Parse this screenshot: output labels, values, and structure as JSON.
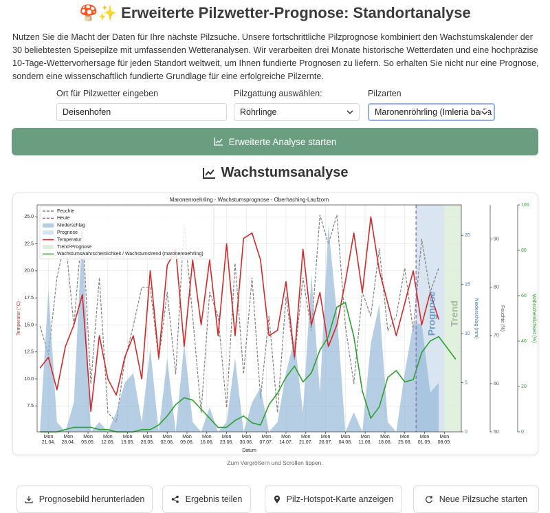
{
  "header": {
    "title": "🍄✨ Erweiterte Pilzwetter-Prognose: Standortanalyse",
    "intro": "Nutzen Sie die Macht der Daten für Ihre nächste Pilzsuche. Unsere fortschrittliche Pilzprognose kombiniert den Wachstumskalender der 30 beliebtesten Speisepilze mit umfassenden Wetteranalysen. Wir verarbeiten drei Monate historische Wetterdaten und eine hochpräzise 10-Tage-Wettervorhersage für jeden Standort weltweit, um Ihnen fundierte Prognosen zu liefern. So erhalten Sie nicht nur eine Prognose, sondern eine wissenschaftlich fundierte Grundlage für eine erfolgreiche Pilzernte."
  },
  "form": {
    "location": {
      "label": "Ort für Pilzwetter eingeben",
      "value": "Deisenhofen"
    },
    "genus": {
      "label": "Pilzgattung auswählen:",
      "value": "Röhrlinge"
    },
    "species": {
      "label": "Pilzarten",
      "value": "Maronenröhrling (Imleria badia"
    },
    "submit": "Erweiterte Analyse starten"
  },
  "section_title": "Wachstumsanalyse",
  "chart_data": {
    "type": "line",
    "title": "Maronenroehrling - Wachstumsprognose - Oberhaching-Laufzorn",
    "xlabel": "Datum",
    "ylabel": "Temperatur (°C)",
    "y2label": "Niederschlag (mm)",
    "y3label": "Feuchte (%)",
    "y4label": "Wahrscheinlichkeit (%)",
    "x": [
      "18.04.",
      "21.04.",
      "24.04.",
      "27.04.",
      "30.04.",
      "03.05.",
      "06.05.",
      "09.05.",
      "12.05.",
      "15.05.",
      "18.05.",
      "21.05.",
      "24.05.",
      "27.05.",
      "30.05.",
      "02.06.",
      "05.06.",
      "08.06.",
      "11.06.",
      "14.06.",
      "17.06.",
      "20.06.",
      "23.06.",
      "26.06.",
      "29.06.",
      "02.07.",
      "05.07.",
      "08.07.",
      "11.07.",
      "14.07.",
      "17.07.",
      "20.07.",
      "23.07.",
      "26.07.",
      "29.07.",
      "01.08.",
      "04.08.",
      "07.08.",
      "10.08.",
      "13.08.",
      "16.08.",
      "19.08.",
      "22.08.",
      "25.08.",
      "28.08.",
      "31.08.",
      "03.09.",
      "06.09.",
      "09.09.",
      "12.09."
    ],
    "xlim": [
      "17.04.",
      "14.09."
    ],
    "xticks": [
      {
        "value": "21.04.",
        "label": "Mon\n21.04."
      },
      {
        "value": "28.04.",
        "label": "Mon\n28.04."
      },
      {
        "value": "05.05.",
        "label": "Mon\n05.05."
      },
      {
        "value": "12.05.",
        "label": "Mon\n12.05."
      },
      {
        "value": "19.05.",
        "label": "Mon\n19.05."
      },
      {
        "value": "26.05.",
        "label": "Mon\n26.05."
      },
      {
        "value": "02.06.",
        "label": "Mon\n02.06."
      },
      {
        "value": "09.06.",
        "label": "Mon\n09.06."
      },
      {
        "value": "16.06.",
        "label": "Mon\n16.06."
      },
      {
        "value": "23.06.",
        "label": "Mon\n23.06."
      },
      {
        "value": "30.06.",
        "label": "Mon\n30.06."
      },
      {
        "value": "07.07.",
        "label": "Mon\n07.07."
      },
      {
        "value": "14.07.",
        "label": "Mon\n14.07."
      },
      {
        "value": "21.07.",
        "label": "Mon\n21.07."
      },
      {
        "value": "28.07.",
        "label": "Mon\n28.07."
      },
      {
        "value": "04.08.",
        "label": "Mon\n04.08."
      },
      {
        "value": "11.08.",
        "label": "Mon\n11.08."
      },
      {
        "value": "18.08.",
        "label": "Mon\n18.08."
      },
      {
        "value": "25.08.",
        "label": "Mon\n25.08."
      },
      {
        "value": "01.09.",
        "label": "Mon\n01.09."
      },
      {
        "value": "08.09.",
        "label": "Mon\n08.09."
      }
    ],
    "ylim": [
      5.1,
      26.1
    ],
    "yticks": [
      7.5,
      {
        "value": 10,
        "label": "10.0"
      },
      12.5,
      {
        "value": 15,
        "label": "15.0"
      },
      17.5,
      {
        "value": 20,
        "label": "20.0"
      },
      22.5,
      {
        "value": 25,
        "label": "25.0"
      }
    ],
    "y2lim": [
      0,
      23.1
    ],
    "y2ticks": [
      0,
      5,
      10,
      15,
      20
    ],
    "y3lim": [
      50,
      97.1
    ],
    "y3ticks": [
      50,
      60,
      70,
      80,
      90
    ],
    "y4lim": [
      0,
      100
    ],
    "y4ticks": [
      0,
      20,
      40,
      60,
      80,
      100
    ],
    "grid": true,
    "legend": "upper left",
    "series": [
      {
        "name": "Feuchte",
        "color": "#808080",
        "axis": "y3",
        "style": "dashed",
        "values": [
          72,
          66,
          82,
          90,
          72,
          93,
          60,
          82,
          54,
          52,
          65,
          72,
          80,
          80,
          65,
          79,
          62,
          93,
          74,
          54,
          79,
          74,
          55,
          85,
          62,
          82,
          57,
          74,
          54,
          78,
          65,
          82,
          71,
          95,
          89,
          95,
          72,
          60,
          79,
          74,
          88,
          71,
          74,
          84,
          71,
          90,
          79,
          84,
          null,
          null
        ]
      },
      {
        "name": "Niederschlag",
        "color": "#8fb4d6",
        "axis": "y2",
        "style": "area",
        "values": [
          0,
          14.5,
          1,
          0,
          3,
          21,
          0,
          1,
          0,
          2,
          5,
          6,
          1,
          8.5,
          0,
          7.5,
          0,
          9,
          1,
          0,
          2.5,
          0,
          1,
          7.5,
          0,
          3,
          4.5,
          0,
          1,
          6,
          9.5,
          2,
          16,
          4,
          21,
          12,
          0,
          2,
          0,
          9,
          13,
          1,
          0,
          6,
          11,
          11,
          4,
          5,
          null,
          null
        ]
      },
      {
        "name": "Temperatur",
        "color": "#d62728",
        "style": "solid",
        "values": [
          11,
          12,
          9,
          13,
          15,
          17.8,
          7,
          14,
          10,
          8.5,
          12,
          14,
          10,
          20,
          12,
          20.5,
          22,
          13,
          21,
          15,
          21,
          14,
          22.5,
          14,
          23,
          23.5,
          21,
          14,
          14.5,
          19,
          12,
          22,
          15,
          18,
          13,
          15,
          19,
          23.5,
          18,
          25,
          20,
          17,
          14,
          17,
          20,
          15,
          18,
          15.5,
          null,
          null
        ]
      },
      {
        "name": "Wachstumswahrscheinlichkeit / Wachstumstrend (maronenroehrling)",
        "color": "#2ca02c",
        "axis": "y4",
        "style": "solid",
        "values": [
          0,
          0,
          0,
          1,
          2,
          2,
          2,
          1,
          1,
          0,
          0,
          0,
          1,
          1,
          3,
          7,
          12,
          15,
          14,
          10,
          6,
          2,
          2,
          5,
          7,
          4,
          3,
          12,
          17,
          24,
          29,
          22,
          26,
          36,
          42,
          55,
          57,
          42,
          18,
          6,
          11,
          24,
          27,
          22,
          23,
          35,
          40,
          42,
          37,
          32
        ]
      }
    ],
    "today": {
      "name": "Heute",
      "x": "29.08.",
      "color": "#9467bd"
    },
    "spans": [
      {
        "name": "Prognose",
        "label": "Prognose",
        "from": "29.08.",
        "to": "08.09.",
        "color": "#cfe0ee",
        "text_color": "#6d9cc7"
      },
      {
        "name": "Trend-Prognose",
        "label": "Trend",
        "from": "08.09.",
        "to": "14.09.",
        "color": "#d9eed6",
        "text_color": "#a9b9a4"
      }
    ]
  },
  "caption": "Zum Vergrößern und Scrollen tippen.",
  "actions": [
    "Prognosebild herunterladen",
    "Ergebnis teilen",
    "Pilz-Hotspot-Karte anzeigen",
    "Neue Pilzsuche starten"
  ]
}
